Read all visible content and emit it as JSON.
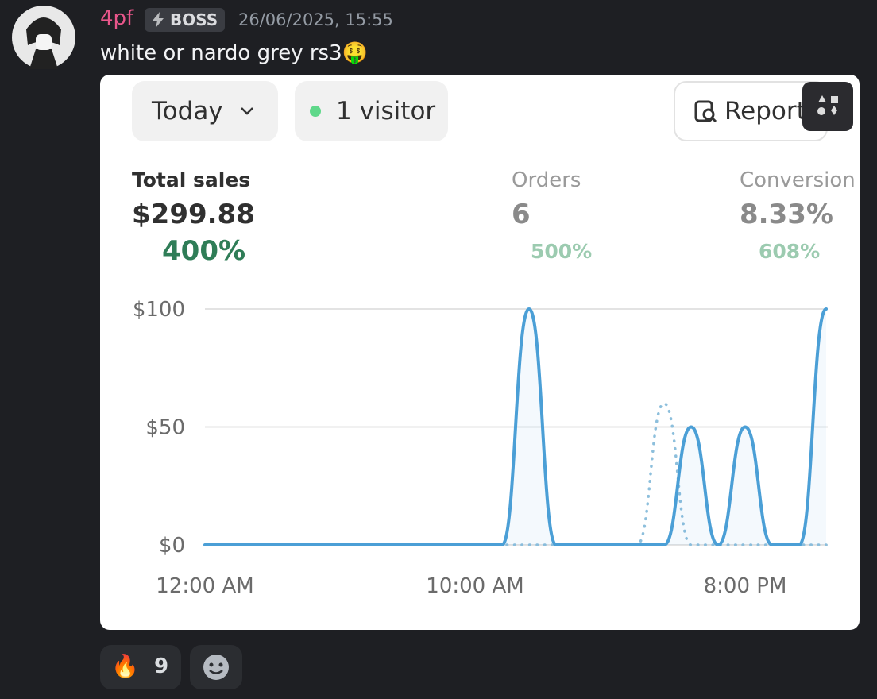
{
  "message": {
    "username": "4pf",
    "badge": "BOSS",
    "timestamp": "26/06/2025, 15:55",
    "text": "white or nardo grey rs3🤑"
  },
  "dashboard": {
    "date_filter": "Today",
    "visitors": "1 visitor",
    "report_button": "Report",
    "metrics": [
      {
        "label": "Total sales",
        "value": "$299.88",
        "change": "400%"
      },
      {
        "label": "Orders",
        "value": "6",
        "change": "500%"
      },
      {
        "label": "Conversion",
        "value": "8.33%",
        "change": "608%"
      }
    ]
  },
  "chart_data": {
    "type": "line",
    "x": [
      0,
      1,
      2,
      3,
      4,
      5,
      6,
      7,
      8,
      9,
      10,
      11,
      12,
      13,
      14,
      15,
      16,
      17,
      18,
      19,
      20,
      21,
      22,
      23
    ],
    "xlim": [
      0,
      23
    ],
    "xticks": [
      {
        "value": 0,
        "label": "12:00 AM"
      },
      {
        "value": 10,
        "label": "10:00 AM"
      },
      {
        "value": 20,
        "label": "8:00 PM"
      }
    ],
    "ylim": [
      0,
      100
    ],
    "yticks": [
      {
        "value": 0,
        "label": "$0"
      },
      {
        "value": 50,
        "label": "$50"
      },
      {
        "value": 100,
        "label": "$100"
      }
    ],
    "grid": true,
    "series": [
      {
        "color": "#4b9fd6",
        "style": "solid",
        "values": [
          0,
          0,
          0,
          0,
          0,
          0,
          0,
          0,
          0,
          0,
          0,
          0,
          100,
          0,
          0,
          0,
          0,
          0,
          50,
          0,
          50,
          0,
          0,
          100
        ]
      },
      {
        "color": "#8dbfdc",
        "style": "dotted",
        "values": [
          0,
          0,
          0,
          0,
          0,
          0,
          0,
          0,
          0,
          0,
          0,
          0,
          0,
          0,
          0,
          0,
          0,
          60,
          0,
          0,
          0,
          0,
          0,
          0
        ]
      }
    ]
  },
  "reactions": [
    {
      "emoji": "🔥",
      "count": 9
    }
  ]
}
